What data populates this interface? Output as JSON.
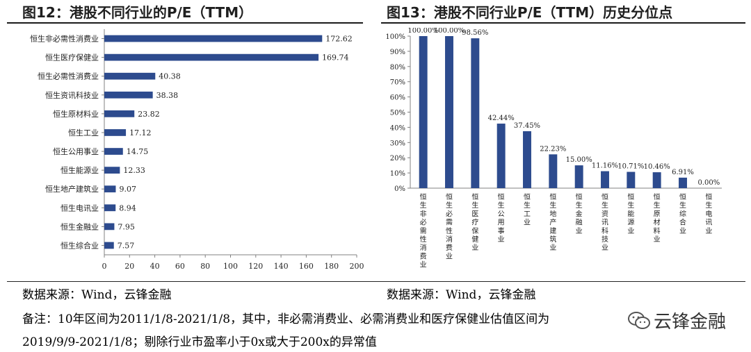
{
  "header": {
    "left_title": "图12：港股不同行业的P/E（TTM）",
    "right_title": "图13：港股不同行业P/E（TTM）历史分位点"
  },
  "footer": {
    "source_left": "数据来源：Wind，云锋金融",
    "source_right": "数据来源：Wind，云锋金融",
    "note_line1": "备注：10年区间为2011/1/8-2021/1/8，其中，非必需消费业、必需消费业和医疗保健业估值区间为",
    "note_line2": "2019/9/9-2021/1/8；剔除行业市盈率小于0x或大于200x的异常值",
    "watermark": "云锋金融",
    "watermark_icon": "wechat-icon"
  },
  "colors": {
    "bar": "#2d4b8e",
    "axis": "#808080",
    "text": "#1f1f1f"
  },
  "chart_data": [
    {
      "type": "bar",
      "orientation": "horizontal",
      "title": "图12：港股不同行业的P/E（TTM）",
      "categories": [
        "恒生非必需性消费业",
        "恒生医疗保健业",
        "恒生必需性消费业",
        "恒生资讯科技业",
        "恒生原材料业",
        "恒生工业",
        "恒生公用事业",
        "恒生能源业",
        "恒生地产建筑业",
        "恒生电讯业",
        "恒生金融业",
        "恒生综合业"
      ],
      "values": [
        172.62,
        169.74,
        40.38,
        38.38,
        23.82,
        17.12,
        14.75,
        12.33,
        9.07,
        8.94,
        7.95,
        7.57
      ],
      "value_labels": [
        "172.62",
        "169.74",
        "40.38",
        "38.38",
        "23.82",
        "17.12",
        "14.75",
        "12.33",
        "9.07",
        "8.94",
        "7.95",
        "7.57"
      ],
      "xlim": [
        0,
        200
      ],
      "xticks": [
        "0",
        "20",
        "40",
        "60",
        "80",
        "100",
        "120",
        "140",
        "160",
        "180",
        "200"
      ],
      "grid": false
    },
    {
      "type": "bar",
      "orientation": "vertical",
      "title": "图13：港股不同行业P/E（TTM）历史分位点",
      "categories": [
        "恒生非必需性消费业",
        "恒生必需性消费业",
        "恒生医疗保健业",
        "恒生公用事业",
        "恒生工业",
        "恒生地产建筑业",
        "恒生金融业",
        "恒生资讯科技业",
        "恒生能源业",
        "恒生原材料业",
        "恒生综合业",
        "恒生电讯业"
      ],
      "values": [
        100.0,
        100.0,
        98.56,
        42.44,
        37.45,
        22.23,
        15.0,
        11.16,
        10.71,
        10.46,
        6.91,
        0.0
      ],
      "value_labels": [
        "100.00%",
        "100.00%",
        "98.56%",
        "42.44%",
        "37.45%",
        "22.23%",
        "15.00%",
        "11.16%",
        "10.71%",
        "10.46%",
        "6.91%",
        "0.00%"
      ],
      "ylim": [
        0,
        100
      ],
      "yticks": [
        "0%",
        "10%",
        "20%",
        "30%",
        "40%",
        "50%",
        "60%",
        "70%",
        "80%",
        "90%",
        "100%"
      ],
      "grid": false
    }
  ]
}
